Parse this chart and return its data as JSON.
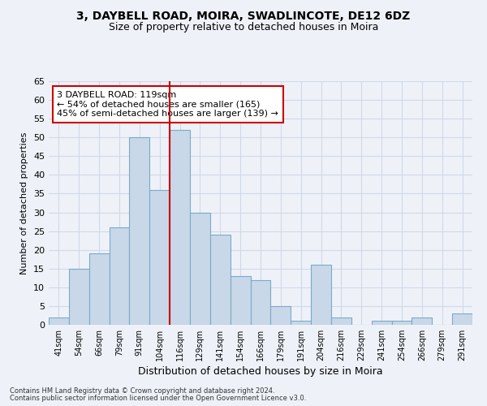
{
  "title1": "3, DAYBELL ROAD, MOIRA, SWADLINCOTE, DE12 6DZ",
  "title2": "Size of property relative to detached houses in Moira",
  "xlabel": "Distribution of detached houses by size in Moira",
  "ylabel": "Number of detached properties",
  "footnote1": "Contains HM Land Registry data © Crown copyright and database right 2024.",
  "footnote2": "Contains public sector information licensed under the Open Government Licence v3.0.",
  "bar_labels": [
    "41sqm",
    "54sqm",
    "66sqm",
    "79sqm",
    "91sqm",
    "104sqm",
    "116sqm",
    "129sqm",
    "141sqm",
    "154sqm",
    "166sqm",
    "179sqm",
    "191sqm",
    "204sqm",
    "216sqm",
    "229sqm",
    "241sqm",
    "254sqm",
    "266sqm",
    "279sqm",
    "291sqm"
  ],
  "bar_values": [
    2,
    15,
    19,
    26,
    50,
    36,
    52,
    30,
    24,
    13,
    12,
    5,
    1,
    16,
    2,
    0,
    1,
    1,
    2,
    0,
    3
  ],
  "bar_color": "#c8d8e8",
  "bar_edgecolor": "#7aaac8",
  "grid_color": "#d0d8e8",
  "background_color": "#eef2f8",
  "annotation_box_text": "3 DAYBELL ROAD: 119sqm\n← 54% of detached houses are smaller (165)\n45% of semi-detached houses are larger (139) →",
  "annotation_box_color": "#ffffff",
  "annotation_box_edgecolor": "#cc0000",
  "vline_x_index": 6,
  "vline_color": "#cc0000",
  "ylim": [
    0,
    65
  ],
  "yticks": [
    0,
    5,
    10,
    15,
    20,
    25,
    30,
    35,
    40,
    45,
    50,
    55,
    60,
    65
  ]
}
